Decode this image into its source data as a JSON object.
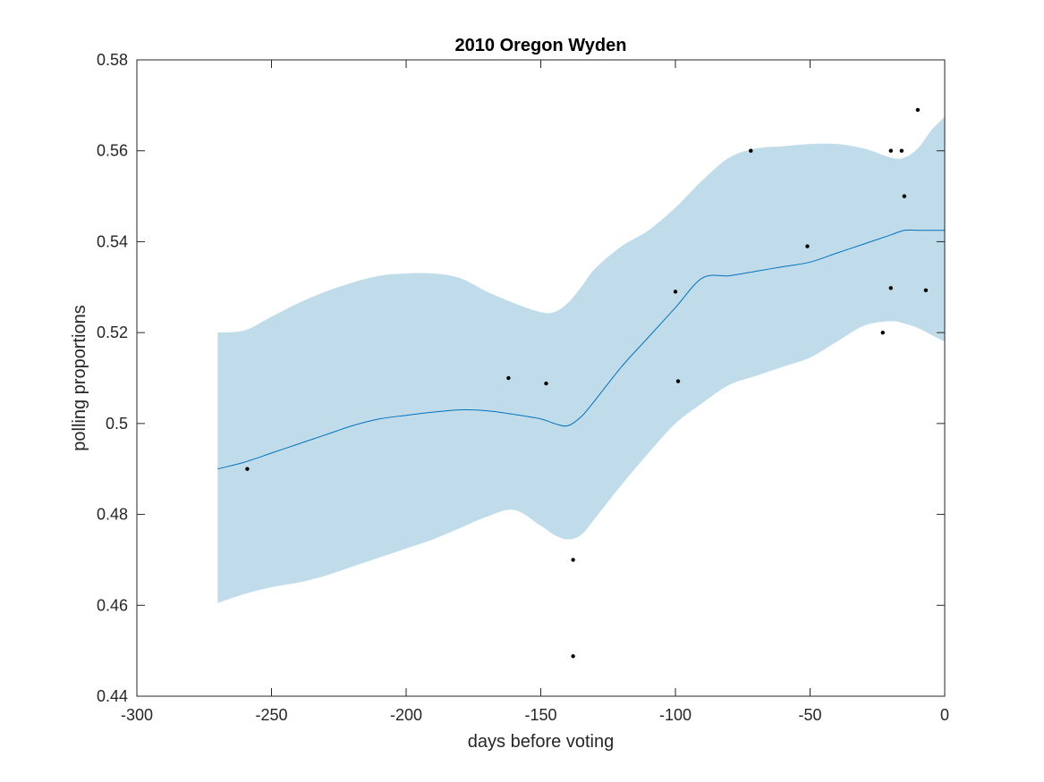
{
  "chart_data": {
    "type": "line",
    "title": "2010 Oregon Wyden",
    "xlabel": "days before voting",
    "ylabel": "polling proportions",
    "xlim": [
      -300,
      0
    ],
    "ylim": [
      0.44,
      0.58
    ],
    "xticks": [
      -300,
      -250,
      -200,
      -150,
      -100,
      -50,
      0
    ],
    "xtick_labels": [
      "-300",
      "-250",
      "-200",
      "-150",
      "-100",
      "-50",
      "0"
    ],
    "yticks": [
      0.44,
      0.46,
      0.48,
      0.5,
      0.52,
      0.54,
      0.56,
      0.58
    ],
    "ytick_labels": [
      "0.44",
      "0.46",
      "0.48",
      "0.5",
      "0.52",
      "0.54",
      "0.56",
      "0.58"
    ],
    "grid": false,
    "colors": {
      "band": "#c0dcea",
      "line": "#0072bd",
      "points": "#000000",
      "axes": "#262626"
    },
    "band": {
      "x": [
        -270,
        -260,
        -250,
        -240,
        -230,
        -220,
        -210,
        -200,
        -190,
        -180,
        -170,
        -160,
        -150,
        -145,
        -140,
        -135,
        -130,
        -120,
        -110,
        -100,
        -90,
        -80,
        -70,
        -60,
        -50,
        -40,
        -30,
        -20,
        -15,
        -10,
        -5,
        0
      ],
      "upper": [
        0.52,
        0.5205,
        0.5235,
        0.5265,
        0.529,
        0.531,
        0.5325,
        0.533,
        0.533,
        0.532,
        0.529,
        0.5265,
        0.5245,
        0.5245,
        0.5265,
        0.53,
        0.534,
        0.539,
        0.5425,
        0.5475,
        0.5535,
        0.5585,
        0.5605,
        0.561,
        0.5615,
        0.5615,
        0.5605,
        0.5585,
        0.5585,
        0.5605,
        0.5645,
        0.5675
      ],
      "lower": [
        0.4605,
        0.4625,
        0.464,
        0.465,
        0.4665,
        0.4685,
        0.4705,
        0.4725,
        0.4745,
        0.477,
        0.4795,
        0.481,
        0.4775,
        0.4755,
        0.4745,
        0.4755,
        0.479,
        0.4865,
        0.4935,
        0.5,
        0.5045,
        0.5085,
        0.5105,
        0.5125,
        0.5145,
        0.518,
        0.5215,
        0.5225,
        0.522,
        0.521,
        0.5195,
        0.518
      ]
    },
    "series": [
      {
        "x": [
          -270,
          -260,
          -250,
          -240,
          -230,
          -220,
          -210,
          -200,
          -190,
          -180,
          -170,
          -160,
          -150,
          -145,
          -140,
          -135,
          -130,
          -120,
          -110,
          -100,
          -90,
          -80,
          -70,
          -60,
          -50,
          -40,
          -30,
          -20,
          -15,
          -10,
          -5,
          0
        ],
        "y": [
          0.49,
          0.4915,
          0.4935,
          0.4955,
          0.4975,
          0.4995,
          0.501,
          0.5018,
          0.5025,
          0.503,
          0.5028,
          0.502,
          0.501,
          0.5,
          0.4995,
          0.5015,
          0.505,
          0.5125,
          0.519,
          0.5255,
          0.532,
          0.5325,
          0.5335,
          0.5345,
          0.5355,
          0.5375,
          0.5395,
          0.5415,
          0.5425,
          0.5425,
          0.5425,
          0.5425
        ]
      }
    ],
    "points": {
      "x": [
        -259,
        -162,
        -148,
        -138,
        -138,
        -100,
        -99,
        -72,
        -51,
        -23,
        -20,
        -20,
        -16,
        -15,
        -10,
        -7
      ],
      "y": [
        0.49,
        0.51,
        0.5088,
        0.47,
        0.4488,
        0.529,
        0.5093,
        0.56,
        0.539,
        0.52,
        0.5298,
        0.56,
        0.56,
        0.55,
        0.569,
        0.5293
      ]
    }
  }
}
